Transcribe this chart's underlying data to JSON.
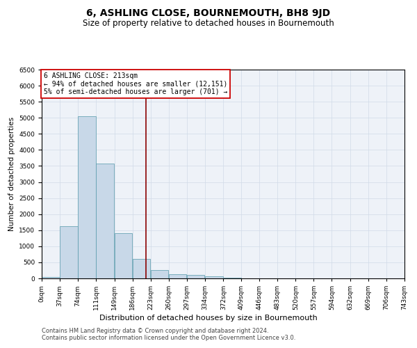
{
  "title": "6, ASHLING CLOSE, BOURNEMOUTH, BH8 9JD",
  "subtitle": "Size of property relative to detached houses in Bournemouth",
  "xlabel": "Distribution of detached houses by size in Bournemouth",
  "ylabel": "Number of detached properties",
  "footnote1": "Contains HM Land Registry data © Crown copyright and database right 2024.",
  "footnote2": "Contains public sector information licensed under the Open Government Licence v3.0.",
  "annotation_title": "6 ASHLING CLOSE: 213sqm",
  "annotation_line1": "← 94% of detached houses are smaller (12,151)",
  "annotation_line2": "5% of semi-detached houses are larger (701) →",
  "property_size": 213,
  "bin_edges": [
    0,
    37,
    74,
    111,
    149,
    186,
    223,
    260,
    297,
    334,
    372,
    409,
    446,
    483,
    520,
    557,
    594,
    632,
    669,
    706,
    743
  ],
  "bin_labels": [
    "0sqm",
    "37sqm",
    "74sqm",
    "111sqm",
    "149sqm",
    "186sqm",
    "223sqm",
    "260sqm",
    "297sqm",
    "334sqm",
    "372sqm",
    "409sqm",
    "446sqm",
    "483sqm",
    "520sqm",
    "557sqm",
    "594sqm",
    "632sqm",
    "669sqm",
    "706sqm",
    "743sqm"
  ],
  "bar_values": [
    50,
    1620,
    5050,
    3580,
    1400,
    600,
    270,
    130,
    100,
    70,
    30,
    10,
    5,
    5,
    3,
    2,
    1,
    1,
    0,
    0
  ],
  "bar_color": "#c8d8e8",
  "bar_edge_color": "#5599aa",
  "vline_color": "#8b0000",
  "vline_x": 213,
  "grid_color": "#d0dae8",
  "bg_color": "#eef2f8",
  "ylim_max": 6500,
  "yticks": [
    0,
    500,
    1000,
    1500,
    2000,
    2500,
    3000,
    3500,
    4000,
    4500,
    5000,
    5500,
    6000,
    6500
  ],
  "annotation_box_facecolor": "#ffffff",
  "annotation_box_edgecolor": "#cc0000",
  "title_fontsize": 10,
  "subtitle_fontsize": 8.5,
  "xlabel_fontsize": 8,
  "ylabel_fontsize": 7.5,
  "tick_fontsize": 6.5,
  "annotation_fontsize": 7,
  "footnote_fontsize": 6
}
